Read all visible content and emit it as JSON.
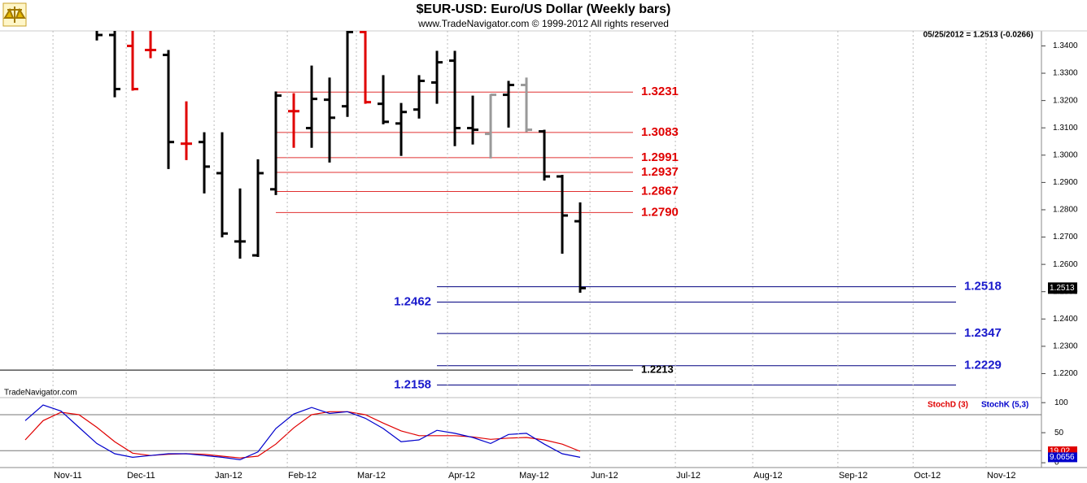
{
  "chart_data": {
    "type": "ohlc",
    "title": "$EUR-USD:  Euro/US Dollar  (Weekly bars)",
    "subtitle": "www.TradeNavigator.com © 1999-2012 All rights reserved",
    "info": "05/25/2012 = 1.2513 (-0.0266)",
    "watermark": "TradeNavigator.com",
    "categories": [
      null,
      null,
      null,
      null,
      null,
      null,
      null,
      null,
      null,
      null,
      null,
      null,
      null,
      null,
      null,
      null,
      null,
      null,
      null,
      null,
      null,
      null,
      null,
      null,
      null,
      null,
      null,
      null,
      null,
      null,
      null,
      null
    ],
    "xlim": [
      -1.41,
      56.77
    ],
    "xticks": [
      {
        "value": 1.55,
        "label": "Nov-11"
      },
      {
        "value": 5.64,
        "label": "Dec-11"
      },
      {
        "value": 10.55,
        "label": "Jan-12"
      },
      {
        "value": 14.64,
        "label": "Feb-12"
      },
      {
        "value": 18.5,
        "label": "Mar-12"
      },
      {
        "value": 23.59,
        "label": "Apr-12"
      },
      {
        "value": 27.55,
        "label": "May-12"
      },
      {
        "value": 31.55,
        "label": "Jun-12"
      },
      {
        "value": 36.32,
        "label": "Jul-12"
      },
      {
        "value": 40.64,
        "label": "Aug-12"
      },
      {
        "value": 45.4,
        "label": "Sep-12"
      },
      {
        "value": 49.6,
        "label": "Oct-12"
      },
      {
        "value": 53.68,
        "label": "Nov-12"
      }
    ],
    "ylim": [
      1.2115,
      1.3455
    ],
    "yticks": [
      {
        "value": 1.34,
        "label": "1.3400"
      },
      {
        "value": 1.33,
        "label": "1.3300"
      },
      {
        "value": 1.32,
        "label": "1.3200"
      },
      {
        "value": 1.31,
        "label": "1.3100"
      },
      {
        "value": 1.3,
        "label": "1.3000"
      },
      {
        "value": 1.29,
        "label": "1.2900"
      },
      {
        "value": 1.28,
        "label": "1.2800"
      },
      {
        "value": 1.27,
        "label": "1.2700"
      },
      {
        "value": 1.26,
        "label": "1.2600"
      },
      {
        "value": 1.25,
        "label": "1.2500"
      },
      {
        "value": 1.24,
        "label": "1.2400"
      },
      {
        "value": 1.23,
        "label": "1.2300"
      },
      {
        "value": 1.22,
        "label": "1.2200"
      }
    ],
    "open": [
      null,
      null,
      null,
      null,
      1.348,
      1.344,
      1.34,
      1.3385,
      1.3367,
      1.3042,
      1.3048,
      1.2934,
      1.2684,
      1.2633,
      1.2875,
      1.3161,
      1.3099,
      1.3203,
      1.3179,
      1.3451,
      1.3188,
      1.3116,
      1.3167,
      1.3266,
      1.3346,
      1.3099,
      1.3078,
      1.3221,
      1.3257,
      1.3087,
      1.2922,
      1.2758
    ],
    "high": [
      null,
      null,
      null,
      null,
      1.352,
      1.348,
      1.347,
      1.346,
      1.3385,
      1.3197,
      1.3084,
      1.3084,
      1.2878,
      1.2985,
      1.3233,
      1.3227,
      1.3328,
      1.3284,
      1.3457,
      1.3457,
      1.3293,
      1.3191,
      1.3293,
      1.3382,
      1.3382,
      1.3218,
      1.3224,
      1.3272,
      1.3284,
      1.3093,
      1.2928,
      1.2827
    ],
    "low": [
      null,
      null,
      null,
      null,
      1.342,
      1.3212,
      1.3236,
      1.3355,
      1.2949,
      1.2982,
      1.286,
      1.2699,
      1.2621,
      1.2627,
      1.2854,
      1.3027,
      1.3027,
      1.2973,
      1.314,
      1.3188,
      1.3113,
      1.2997,
      1.3134,
      1.3188,
      1.3033,
      1.3039,
      1.2988,
      1.3101,
      1.3084,
      1.2907,
      1.2639,
      1.2496
    ],
    "close": [
      null,
      null,
      null,
      null,
      1.344,
      1.3242,
      1.3242,
      1.3385,
      1.3048,
      1.3042,
      1.2958,
      1.2713,
      1.2684,
      1.2934,
      1.3218,
      1.3161,
      1.3206,
      1.3137,
      1.3451,
      1.3194,
      1.3122,
      1.3158,
      1.3272,
      1.334,
      1.3099,
      1.3093,
      1.3221,
      1.3257,
      1.3093,
      1.2922,
      1.2779,
      1.2513
    ],
    "colors": [
      null,
      null,
      null,
      null,
      "#000000",
      "#000000",
      "#e00000",
      "#e00000",
      "#000000",
      "#e00000",
      "#000000",
      "#000000",
      "#000000",
      "#000000",
      "#000000",
      "#e00000",
      "#000000",
      "#000000",
      "#000000",
      "#e00000",
      "#000000",
      "#000000",
      "#000000",
      "#000000",
      "#000000",
      "#000000",
      "#999999",
      "#000000",
      "#999999",
      "#000000",
      "#000000",
      "#000000"
    ],
    "levels": [
      {
        "value": 1.3231,
        "label": "1.3231",
        "color": "#e00000",
        "side": "right"
      },
      {
        "value": 1.3083,
        "label": "1.3083",
        "color": "#e00000",
        "side": "right"
      },
      {
        "value": 1.2991,
        "label": "1.2991",
        "color": "#e00000",
        "side": "right"
      },
      {
        "value": 1.2937,
        "label": "1.2937",
        "color": "#e00000",
        "side": "right"
      },
      {
        "value": 1.2867,
        "label": "1.2867",
        "color": "#e00000",
        "side": "right"
      },
      {
        "value": 1.279,
        "label": "1.2790",
        "color": "#e00000",
        "side": "right"
      },
      {
        "value": 1.2518,
        "label": "1.2518",
        "color": "#1a1acc",
        "side": "right"
      },
      {
        "value": 1.2462,
        "label": "1.2462",
        "color": "#1a1acc",
        "side": "left"
      },
      {
        "value": 1.2347,
        "label": "1.2347",
        "color": "#1a1acc",
        "side": "right"
      },
      {
        "value": 1.2229,
        "label": "1.2229",
        "color": "#1a1acc",
        "side": "right"
      },
      {
        "value": 1.2158,
        "label": "1.2158",
        "color": "#1a1acc",
        "side": "left"
      },
      {
        "value": 1.2213,
        "label": "1.2213",
        "color": "#000000",
        "side": "right"
      }
    ],
    "indicator": {
      "type": "line",
      "ylim": [
        -8,
        107
      ],
      "yticks": [
        100,
        50,
        0
      ],
      "levels": [
        80,
        20
      ],
      "series": [
        {
          "name": "StochD (3)",
          "color": "#e00000",
          "values": [
            38,
            70,
            84,
            80,
            59,
            35,
            16,
            12,
            14,
            15,
            14,
            11,
            8,
            11,
            31,
            58,
            80,
            85,
            85,
            80,
            66,
            53,
            45,
            45,
            45,
            43,
            39,
            41,
            42,
            38,
            31,
            19.02
          ]
        },
        {
          "name": "StochK (5,3)",
          "color": "#0000cc",
          "values": [
            70,
            96,
            86,
            59,
            32,
            15,
            9,
            12,
            15,
            15,
            12,
            9,
            5,
            18,
            57,
            81,
            92,
            82,
            85,
            74,
            57,
            35,
            38,
            54,
            49,
            42,
            32,
            47,
            49,
            31,
            15,
            9.0656
          ]
        }
      ]
    }
  }
}
